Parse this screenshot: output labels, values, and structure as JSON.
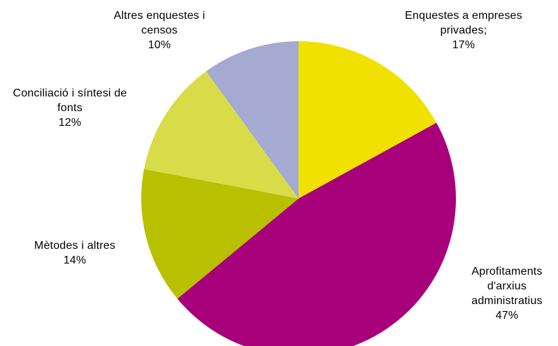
{
  "chart_data": {
    "type": "pie",
    "title": "",
    "slices": [
      {
        "label": "Enquestes a empreses privades;",
        "value": 17,
        "pct_label": "17%",
        "color": "#f0e100"
      },
      {
        "label": "Aprofitaments d'arxius administratius",
        "value": 47,
        "pct_label": "47%",
        "color": "#a8007a"
      },
      {
        "label": "Mètodes i altres",
        "value": 14,
        "pct_label": "14%",
        "color": "#b8c000"
      },
      {
        "label": "Conciliació i síntesi de fonts",
        "value": 12,
        "pct_label": "12%",
        "color": "#d8dc48"
      },
      {
        "label": "Altres enquestes i censos",
        "value": 10,
        "pct_label": "10%",
        "color": "#a4aad2"
      }
    ],
    "start": "12 o'clock",
    "direction": "clockwise",
    "legend": "none",
    "labels": "outside"
  }
}
